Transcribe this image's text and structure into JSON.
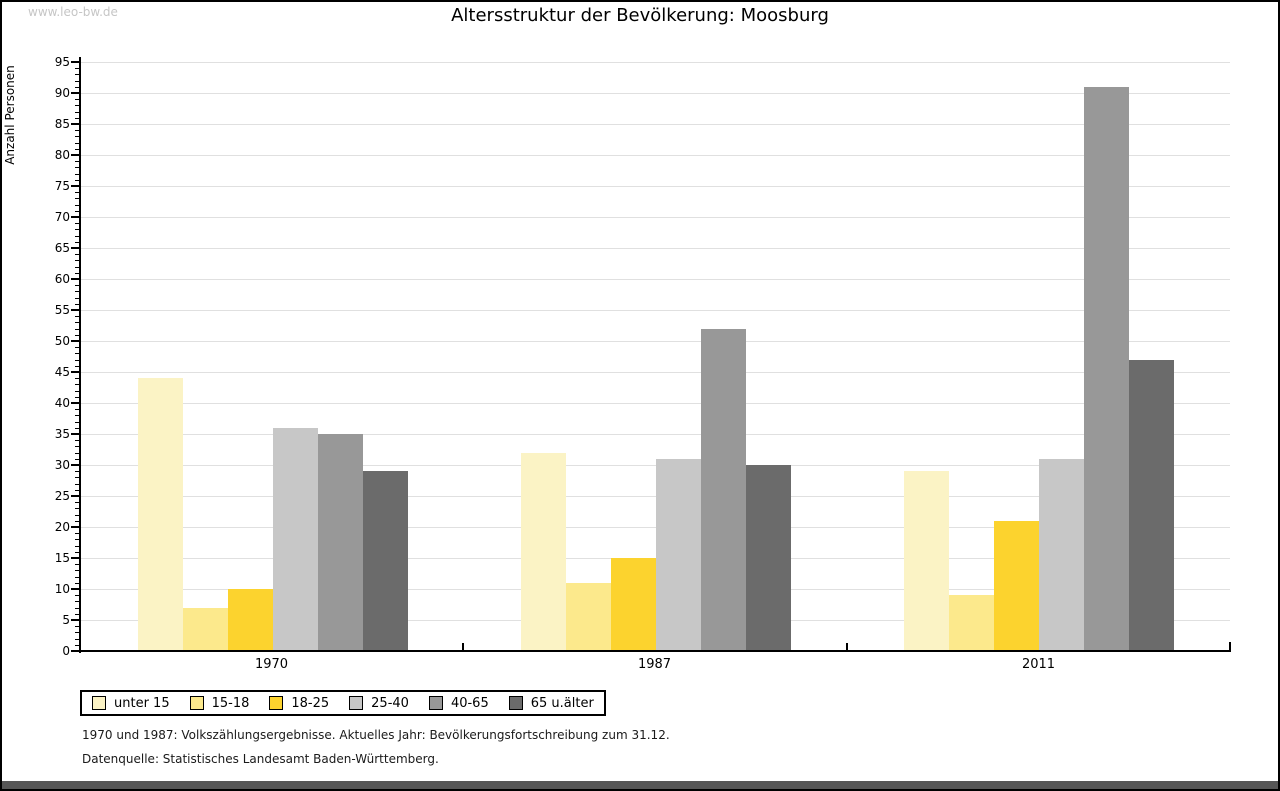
{
  "watermark": "www.leo-bw.de",
  "title": "Altersstruktur der Bevölkerung: Moosburg",
  "chart_data": {
    "type": "bar",
    "title": "Altersstruktur der Bevölkerung: Moosburg",
    "ylabel": "Anzahl Personen",
    "xlabel": "",
    "ylim": [
      0,
      95
    ],
    "ytick_interval": 5,
    "yminor_tick_interval": 1,
    "grid": true,
    "legend_position": "bottom-left",
    "categories": [
      "1970",
      "1987",
      "2011"
    ],
    "series": [
      {
        "name": "unter 15",
        "color": "#fbf3c5",
        "values": [
          44,
          32,
          29
        ]
      },
      {
        "name": "15-18",
        "color": "#fce98c",
        "values": [
          7,
          11,
          9
        ]
      },
      {
        "name": "18-25",
        "color": "#fcd32e",
        "values": [
          10,
          15,
          21
        ]
      },
      {
        "name": "25-40",
        "color": "#c7c7c7",
        "values": [
          36,
          31,
          31
        ]
      },
      {
        "name": "40-65",
        "color": "#989898",
        "values": [
          35,
          52,
          91
        ]
      },
      {
        "name": "65 u.älter",
        "color": "#6b6b6b",
        "values": [
          29,
          30,
          47
        ]
      }
    ]
  },
  "footnotes": [
    "1970 und 1987: Volkszählungsergebnisse. Aktuelles Jahr: Bevölkerungsfortschreibung zum 31.12.",
    "Datenquelle: Statistisches Landesamt Baden-Württemberg."
  ]
}
